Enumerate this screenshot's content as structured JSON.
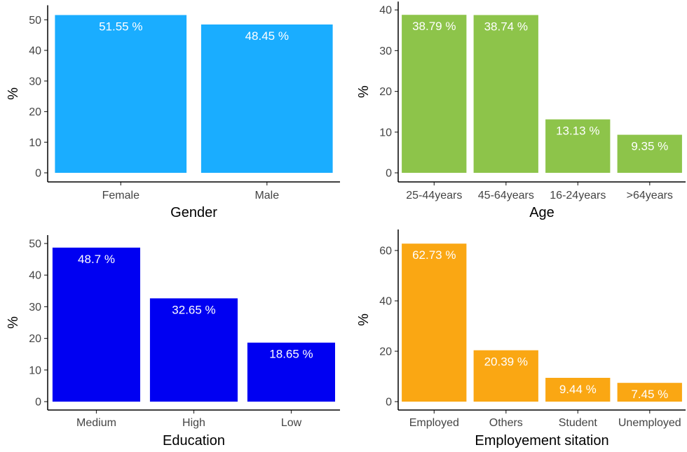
{
  "chart_data": [
    {
      "type": "bar",
      "categories": [
        "Female",
        "Male"
      ],
      "values": [
        51.55,
        48.45
      ],
      "data_labels": [
        "51.55 %",
        "48.45 %"
      ],
      "xlabel": "Gender",
      "ylabel": "%",
      "ylim": [
        0,
        52
      ],
      "yticks": [
        0,
        10,
        20,
        30,
        40,
        50
      ],
      "color": "#1AADFF",
      "grid": false
    },
    {
      "type": "bar",
      "categories": [
        "25-44years",
        "45-64years",
        "16-24years",
        ">64years"
      ],
      "values": [
        38.79,
        38.74,
        13.13,
        9.35
      ],
      "data_labels": [
        "38.79 %",
        "38.74 %",
        "13.13 %",
        "9.35 %"
      ],
      "xlabel": "Age",
      "ylabel": "%",
      "ylim": [
        0,
        40
      ],
      "yticks": [
        0,
        10,
        20,
        30,
        40
      ],
      "color": "#8DC44A",
      "grid": false
    },
    {
      "type": "bar",
      "categories": [
        "Medium",
        "High",
        "Low"
      ],
      "values": [
        48.7,
        32.65,
        18.65
      ],
      "data_labels": [
        "48.7 %",
        "32.65 %",
        "18.65 %"
      ],
      "xlabel": "Education",
      "ylabel": "%",
      "ylim": [
        0,
        50
      ],
      "yticks": [
        0,
        10,
        20,
        30,
        40,
        50
      ],
      "color": "#0000F2",
      "grid": false
    },
    {
      "type": "bar",
      "categories": [
        "Employed",
        "Others",
        "Student",
        "Unemployed"
      ],
      "values": [
        62.73,
        20.39,
        9.44,
        7.45
      ],
      "data_labels": [
        "62.73 %",
        "20.39 %",
        "9.44 %",
        "7.45 %"
      ],
      "xlabel": "Employement sitation",
      "ylabel": "%",
      "ylim": [
        0,
        65
      ],
      "yticks": [
        0,
        20,
        40,
        60
      ],
      "color": "#FAA713",
      "grid": false
    }
  ]
}
